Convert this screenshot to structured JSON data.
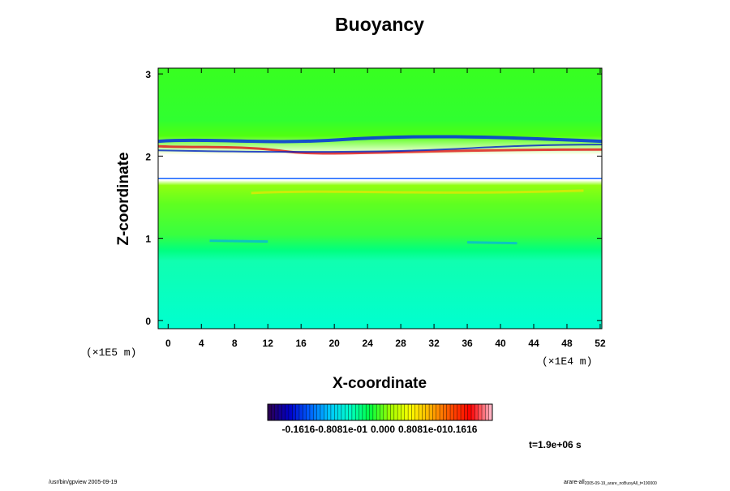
{
  "chart_data": {
    "type": "heatmap",
    "title": "Buoyancy",
    "xlabel": "X-coordinate",
    "ylabel": "Z-coordinate",
    "x_unit": "(×1E4 m)",
    "y_unit": "(×1E5 m)",
    "xlim": [
      -1.2,
      52.2
    ],
    "ylim": [
      -0.1,
      3.07
    ],
    "x_ticks": [
      "0",
      "4",
      "8",
      "12",
      "16",
      "20",
      "24",
      "28",
      "32",
      "36",
      "40",
      "44",
      "48",
      "52"
    ],
    "y_ticks": [
      "0",
      "1",
      "2",
      "3"
    ],
    "colorbar": {
      "min": -0.1616,
      "max": 0.1616,
      "tick_labels": [
        "-0.1616",
        "-0.8081e-01",
        "0.000",
        "0.8081e-01",
        "0.1616"
      ],
      "colors": [
        "#2a0055",
        "#0000c8",
        "#0060ff",
        "#00c8ff",
        "#00ffc8",
        "#00ff40",
        "#a0ff00",
        "#ffff00",
        "#ffb000",
        "#ff5000",
        "#ff0000",
        "#ffb0c0"
      ]
    },
    "field_bands": [
      {
        "z_range": [
          -0.1,
          0.85
        ],
        "value": -0.03
      },
      {
        "z_range": [
          0.85,
          1.05
        ],
        "value": 0.0
      },
      {
        "z_range": [
          1.05,
          1.5
        ],
        "value": 0.01
      },
      {
        "z_range": [
          1.5,
          1.73
        ],
        "value": 0.035
      },
      {
        "z_range": [
          1.73,
          2.02
        ],
        "value": null
      },
      {
        "z_range": [
          2.02,
          2.25
        ],
        "value": 0.02
      },
      {
        "z_range": [
          2.25,
          3.07
        ],
        "value": 0.005
      }
    ],
    "grid": false,
    "legend": "colorbar-bottom"
  },
  "time_label": "t=1.9e+06 s",
  "footer": {
    "left": "/usr/bin/gpview 2005-09-19",
    "right": "arare-all",
    "right_sub": "2005-09-19_arare_noBuoyAll_t=190000"
  }
}
